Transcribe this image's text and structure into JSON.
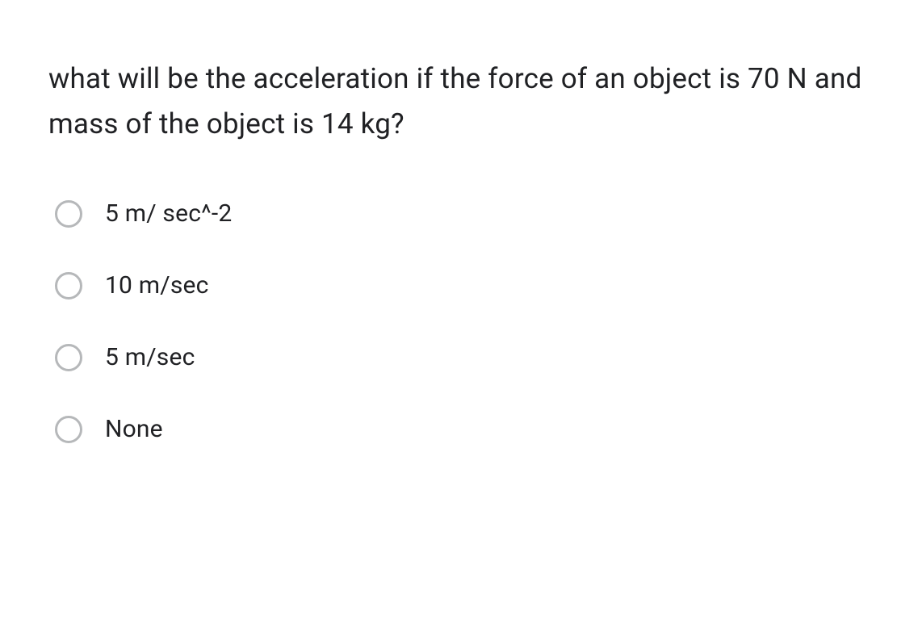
{
  "question": "what will be the acceleration if the force of an object is 70 N and mass of the object is 14 kg?",
  "options": [
    {
      "label": "5 m/ sec^-2"
    },
    {
      "label": "10 m/sec"
    },
    {
      "label": "5 m/sec"
    },
    {
      "label": "None"
    }
  ],
  "colors": {
    "text": "#202124",
    "radio_border": "#b6b8ba",
    "background": "#ffffff"
  },
  "typography": {
    "question_fontsize": 35,
    "option_fontsize": 30,
    "font_family": "Roboto, Helvetica Neue, Arial, sans-serif"
  }
}
